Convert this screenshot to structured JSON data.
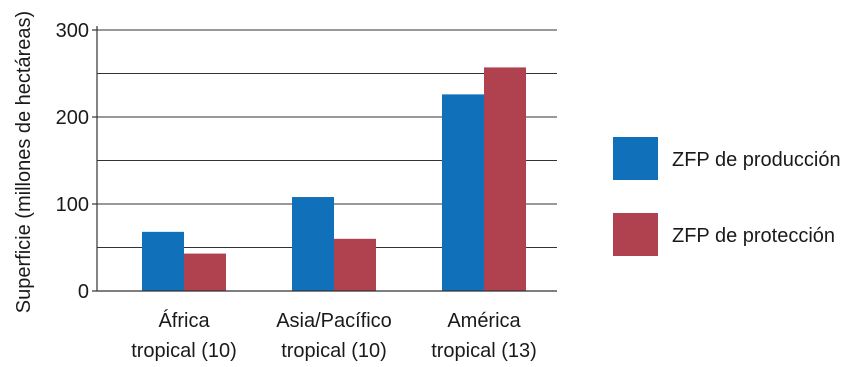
{
  "chart_data": {
    "type": "bar",
    "categories": [
      [
        "África",
        "tropical (10)"
      ],
      [
        "Asia/Pacífico",
        "tropical (10)"
      ],
      [
        "América",
        "tropical (13)"
      ]
    ],
    "series": [
      {
        "name": "ZFP de producción",
        "color": "#1170ba",
        "values": [
          68,
          108,
          226
        ]
      },
      {
        "name": "ZFP de protección",
        "color": "#b0424f",
        "values": [
          43,
          60,
          257
        ]
      }
    ],
    "title": "",
    "xlabel": "",
    "ylabel": "Superficie (millones de hectáreas)",
    "ylim": [
      0,
      300
    ],
    "yticks": [
      0,
      100,
      200,
      300
    ],
    "gridlines": [
      50,
      100,
      150,
      200,
      250,
      300
    ],
    "grid": true,
    "legend": "right"
  }
}
